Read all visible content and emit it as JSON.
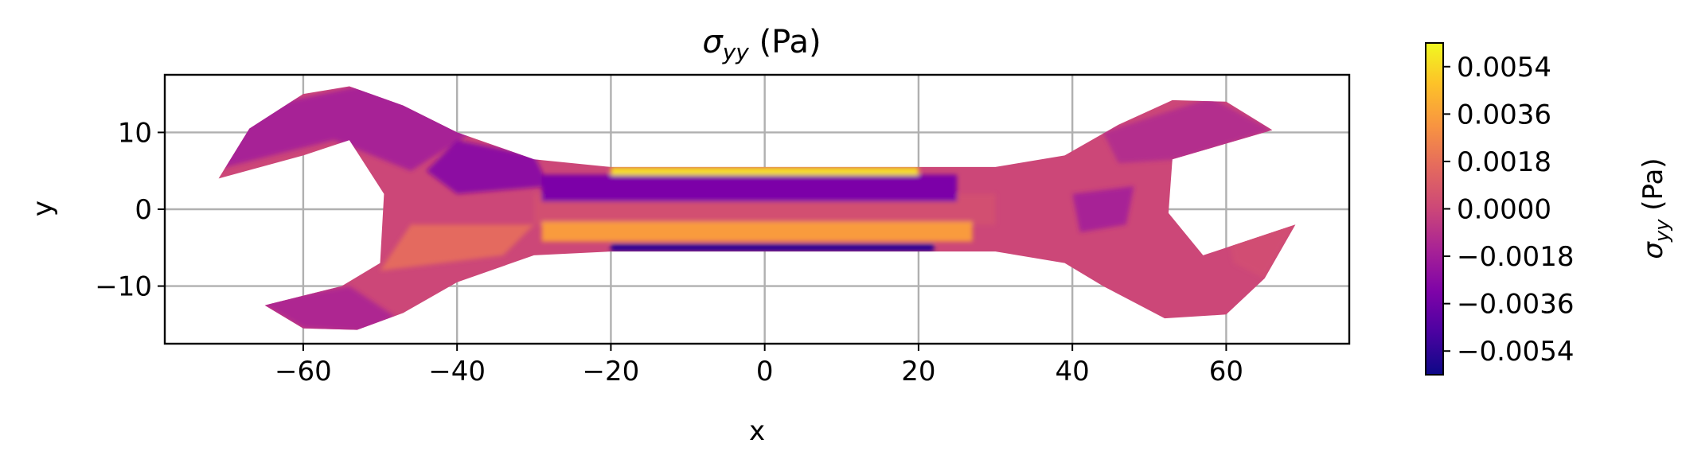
{
  "chart_data": {
    "type": "heatmap",
    "title": {
      "symbol": "σ",
      "subscript": "yy",
      "suffix": " (Pa)"
    },
    "xlabel": "x",
    "ylabel": "y",
    "xlim": [
      -78,
      76
    ],
    "ylim": [
      -17.5,
      17.5
    ],
    "xticks": [
      -60,
      -40,
      -20,
      0,
      20,
      40,
      60
    ],
    "xtick_labels": [
      "−60",
      "−40",
      "−20",
      "0",
      "20",
      "40",
      "60"
    ],
    "yticks": [
      10,
      0,
      -10
    ],
    "ytick_labels": [
      "10",
      "0",
      "−10"
    ],
    "grid": true,
    "colormap": "plasma",
    "colorbar": {
      "label": {
        "symbol": "σ",
        "subscript": "yy",
        "suffix": " (Pa)"
      },
      "range": [
        -0.0063,
        0.0063
      ],
      "ticks": [
        0.0054,
        0.0036,
        0.0018,
        0.0,
        -0.0018,
        -0.0036,
        -0.0054
      ],
      "tick_labels": [
        "0.0054",
        "0.0036",
        "0.0018",
        "0.0000",
        "−0.0018",
        "−0.0036",
        "−0.0054"
      ]
    },
    "outline": [
      [
        -71,
        4
      ],
      [
        -67,
        10.5
      ],
      [
        -60,
        15
      ],
      [
        -54,
        16
      ],
      [
        -47,
        13.5
      ],
      [
        -40,
        10
      ],
      [
        -30,
        6.5
      ],
      [
        -20,
        5.5
      ],
      [
        30,
        5.5
      ],
      [
        39,
        7
      ],
      [
        46,
        11
      ],
      [
        53,
        14.2
      ],
      [
        60,
        14
      ],
      [
        66,
        10.3
      ],
      [
        53,
        6.5
      ],
      [
        52.5,
        -0.5
      ],
      [
        57,
        -6
      ],
      [
        69,
        -2
      ],
      [
        65,
        -9
      ],
      [
        60,
        -13.7
      ],
      [
        52,
        -14.2
      ],
      [
        44,
        -10
      ],
      [
        39,
        -7
      ],
      [
        30,
        -5.5
      ],
      [
        -20,
        -5.5
      ],
      [
        -30,
        -6
      ],
      [
        -40,
        -9.5
      ],
      [
        -47,
        -13.5
      ],
      [
        -53,
        -15.7
      ],
      [
        -60,
        -15.5
      ],
      [
        -65,
        -12.5
      ],
      [
        -55,
        -10
      ],
      [
        -50,
        -7
      ],
      [
        -49.5,
        2
      ],
      [
        -54,
        9
      ],
      [
        -60,
        7
      ]
    ],
    "field_regions": [
      {
        "polygon": [
          [
            -72,
            12
          ],
          [
            -48,
            17
          ],
          [
            -38,
            10
          ],
          [
            -46,
            5
          ],
          [
            -56,
            9
          ],
          [
            -72,
            5
          ]
        ],
        "value": -0.0016
      },
      {
        "polygon": [
          [
            -40,
            9
          ],
          [
            -30,
            7
          ],
          [
            -28,
            3
          ],
          [
            -40,
            2
          ],
          [
            -44,
            5
          ]
        ],
        "value": -0.0026
      },
      {
        "polygon": [
          [
            -50,
            -8
          ],
          [
            -34,
            -6
          ],
          [
            -30,
            -2
          ],
          [
            -46,
            -2
          ]
        ],
        "value": 0.0016
      },
      {
        "polygon": [
          [
            -66,
            -12
          ],
          [
            -54,
            -10
          ],
          [
            -48,
            -14
          ],
          [
            -52,
            -16
          ],
          [
            -60,
            -15.5
          ]
        ],
        "value": -0.0013
      },
      {
        "polygon": [
          [
            -30,
            2
          ],
          [
            30,
            2
          ],
          [
            30,
            -2
          ],
          [
            -30,
            -2
          ]
        ],
        "value": 0.0004
      },
      {
        "polygon": [
          [
            -29,
            4.5
          ],
          [
            25,
            4.5
          ],
          [
            25,
            1
          ],
          [
            -29,
            1
          ]
        ],
        "value": -0.0032
      },
      {
        "polygon": [
          [
            -20,
            5.5
          ],
          [
            20,
            5.5
          ],
          [
            20,
            4.4
          ],
          [
            -20,
            4.4
          ]
        ],
        "value": 0.0055
      },
      {
        "polygon": [
          [
            -29,
            -1.6
          ],
          [
            27,
            -1.6
          ],
          [
            27,
            -4.2
          ],
          [
            -29,
            -4.2
          ]
        ],
        "value": 0.0034
      },
      {
        "polygon": [
          [
            -20,
            -4.5
          ],
          [
            22,
            -4.5
          ],
          [
            22,
            -5.5
          ],
          [
            -20,
            -5.5
          ]
        ],
        "value": -0.0055
      },
      {
        "polygon": [
          [
            44,
            10
          ],
          [
            58,
            14.5
          ],
          [
            66,
            10.3
          ],
          [
            54,
            6.5
          ],
          [
            46,
            6
          ]
        ],
        "value": -0.0011
      },
      {
        "polygon": [
          [
            40,
            2
          ],
          [
            48,
            3
          ],
          [
            47,
            -2
          ],
          [
            41,
            -3
          ]
        ],
        "value": -0.0016
      },
      {
        "polygon": [
          [
            60,
            -2
          ],
          [
            69,
            -2
          ],
          [
            65,
            -9
          ],
          [
            61,
            -7
          ]
        ],
        "value": 0.0003
      }
    ]
  }
}
